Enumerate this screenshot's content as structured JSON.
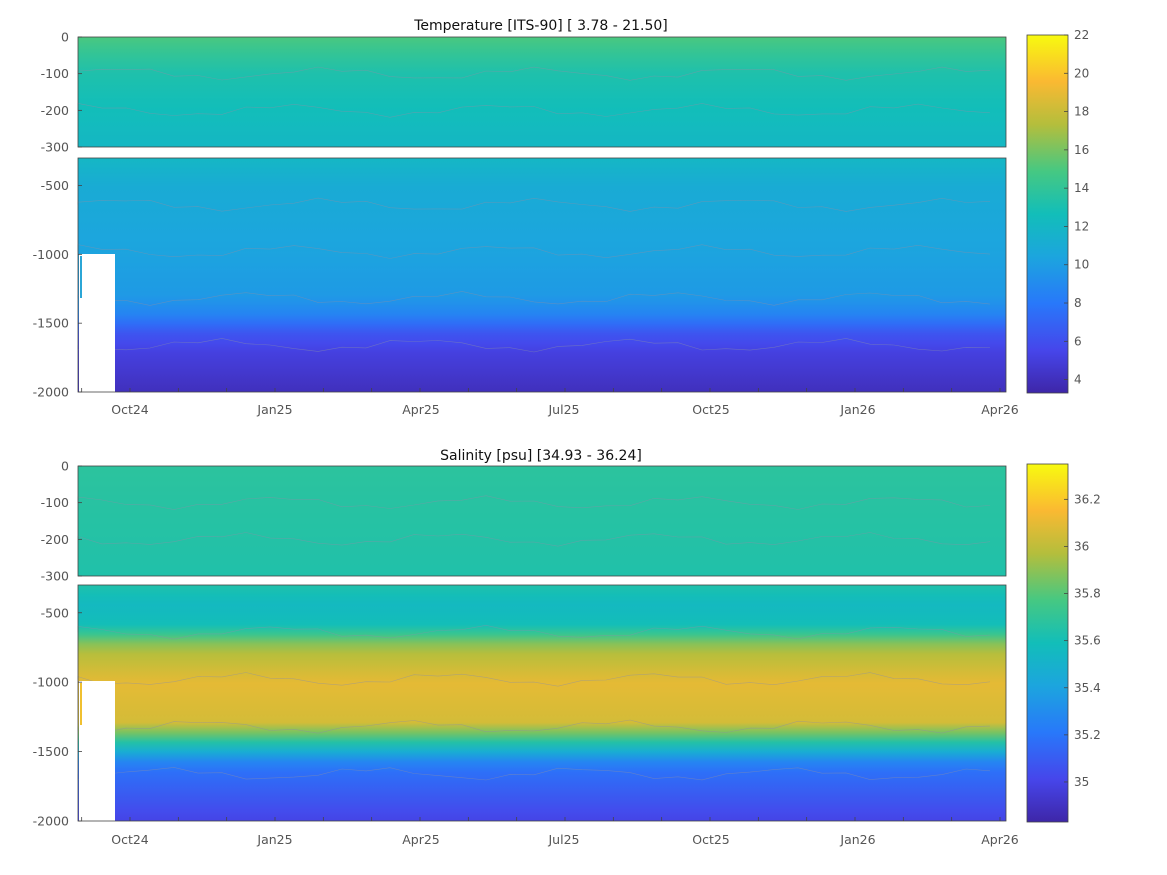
{
  "chart_data": [
    {
      "type": "heatmap",
      "title": "Temperature [ITS-90]   [ 3.78 - 21.50]",
      "variable": "temperature",
      "value_range": [
        3.78,
        21.5
      ],
      "clim": [
        3.3,
        22
      ],
      "colorbar_ticks": [
        "4",
        "6",
        "8",
        "10",
        "12",
        "14",
        "16",
        "18",
        "20",
        "22"
      ],
      "colorbar_values": [
        4,
        6,
        8,
        10,
        12,
        14,
        16,
        18,
        20,
        22
      ],
      "x_ticks": [
        "Oct24",
        "Jan25",
        "Apr25",
        "Jul25",
        "Oct25",
        "Jan26",
        "Apr26"
      ],
      "upper_panel": {
        "ylim": [
          -300,
          0
        ],
        "y_ticks": [
          "0",
          "-100",
          "-200",
          "-300"
        ],
        "y_values": [
          0,
          -100,
          -200,
          -300
        ]
      },
      "lower_panel": {
        "ylim": [
          -2000,
          -300
        ],
        "y_ticks": [
          "-500",
          "-1000",
          "-1500",
          "-2000"
        ],
        "y_values": [
          -500,
          -1000,
          -1500,
          -2000
        ]
      },
      "profile": [
        {
          "depth": 0,
          "value": 15.0
        },
        {
          "depth": -50,
          "value": 14.0
        },
        {
          "depth": -100,
          "value": 13.2
        },
        {
          "depth": -200,
          "value": 12.6
        },
        {
          "depth": -300,
          "value": 12.0
        },
        {
          "depth": -500,
          "value": 11.0
        },
        {
          "depth": -1000,
          "value": 10.3
        },
        {
          "depth": -1300,
          "value": 9.8
        },
        {
          "depth": -1450,
          "value": 8.5
        },
        {
          "depth": -1550,
          "value": 6.5
        },
        {
          "depth": -1700,
          "value": 5.2
        },
        {
          "depth": -2000,
          "value": 4.0
        }
      ]
    },
    {
      "type": "heatmap",
      "title": "Salinity [psu]   [34.93 - 36.24]",
      "variable": "salinity",
      "value_range": [
        34.93,
        36.24
      ],
      "clim": [
        34.83,
        36.35
      ],
      "colorbar_ticks": [
        "35",
        "35.2",
        "35.4",
        "35.6",
        "35.8",
        "36",
        "36.2"
      ],
      "colorbar_values": [
        35.0,
        35.2,
        35.4,
        35.6,
        35.8,
        36.0,
        36.2
      ],
      "x_ticks": [
        "Oct24",
        "Jan25",
        "Apr25",
        "Jul25",
        "Oct25",
        "Jan26",
        "Apr26"
      ],
      "upper_panel": {
        "ylim": [
          -300,
          0
        ],
        "y_ticks": [
          "0",
          "-100",
          "-200",
          "-300"
        ],
        "y_values": [
          0,
          -100,
          -200,
          -300
        ]
      },
      "lower_panel": {
        "ylim": [
          -2000,
          -300
        ],
        "y_ticks": [
          "-500",
          "-1000",
          "-1500",
          "-2000"
        ],
        "y_values": [
          -500,
          -1000,
          -1500,
          -2000
        ]
      },
      "profile": [
        {
          "depth": 0,
          "value": 35.68
        },
        {
          "depth": -150,
          "value": 35.66
        },
        {
          "depth": -300,
          "value": 35.64
        },
        {
          "depth": -450,
          "value": 35.55
        },
        {
          "depth": -600,
          "value": 35.6
        },
        {
          "depth": -750,
          "value": 35.95
        },
        {
          "depth": -1000,
          "value": 36.1
        },
        {
          "depth": -1300,
          "value": 36.05
        },
        {
          "depth": -1450,
          "value": 35.6
        },
        {
          "depth": -1600,
          "value": 35.2
        },
        {
          "depth": -2000,
          "value": 35.0
        }
      ]
    }
  ]
}
